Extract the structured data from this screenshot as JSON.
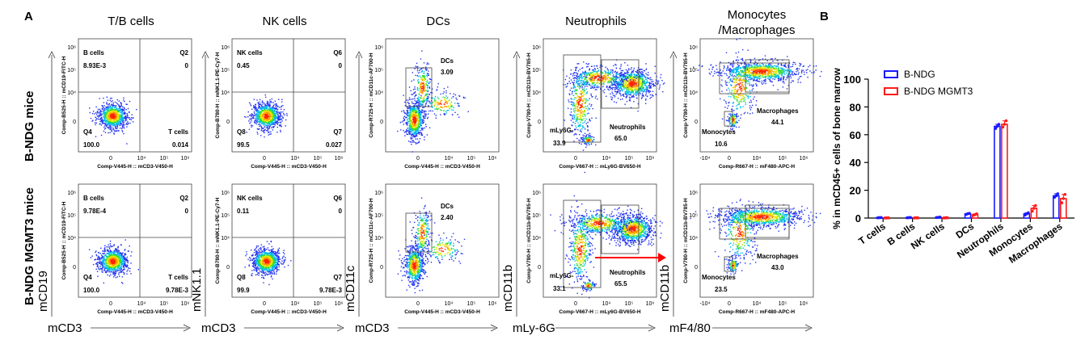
{
  "figure": {
    "panel_a_letter": "A",
    "panel_b_letter": "B",
    "row_labels": [
      "B-NDG mice",
      "B-NDG MGMT3 mice"
    ],
    "columns": [
      {
        "title": "T/B cells",
        "big_y_label": "mCD19",
        "big_x_label": "mCD3",
        "x_axis_label": "Comp-V445-H :: mCD3-V450-H",
        "y_axis_label": "Comp-B525-H :: mCD19-FITC-H",
        "x_ticks": [
          "0",
          "10⁴",
          "10⁵",
          "10⁶"
        ],
        "y_ticks": [
          "10⁶",
          "10⁵",
          "10⁴",
          "0"
        ],
        "gate": "quadrant",
        "rows": [
          {
            "labels": [
              {
                "t": "B cells",
                "a": "tl"
              },
              {
                "t": "8.93E-3",
                "a": "tl2"
              },
              {
                "t": "Q2",
                "a": "tr"
              },
              {
                "t": "0",
                "a": "tr2"
              },
              {
                "t": "Q4",
                "a": "bl"
              },
              {
                "t": "100.0",
                "a": "bl2"
              },
              {
                "t": "T cells",
                "a": "br"
              },
              {
                "t": "0.014",
                "a": "br2"
              }
            ]
          },
          {
            "labels": [
              {
                "t": "B cells",
                "a": "tl"
              },
              {
                "t": "9.78E-4",
                "a": "tl2"
              },
              {
                "t": "Q2",
                "a": "tr"
              },
              {
                "t": "0",
                "a": "tr2"
              },
              {
                "t": "Q4",
                "a": "bl"
              },
              {
                "t": "100.0",
                "a": "bl2"
              },
              {
                "t": "T cells",
                "a": "br"
              },
              {
                "t": "9.78E-3",
                "a": "br2"
              }
            ]
          }
        ]
      },
      {
        "title": "NK cells",
        "big_y_label": "mNK1.1",
        "big_x_label": "mCD3",
        "x_axis_label": "Comp-V445-H :: mCD3-V450-H",
        "y_axis_label": "Comp-B780-H :: mNK1.1-PE-Cy7-H",
        "x_ticks": [
          "0",
          "10⁴",
          "10⁵",
          "10⁶"
        ],
        "y_ticks": [
          "10⁶",
          "10⁵",
          "10⁴",
          "0"
        ],
        "gate": "quadrant",
        "rows": [
          {
            "labels": [
              {
                "t": "NK cells",
                "a": "tl"
              },
              {
                "t": "0.45",
                "a": "tl2"
              },
              {
                "t": "Q6",
                "a": "tr"
              },
              {
                "t": "0",
                "a": "tr2"
              },
              {
                "t": "Q8",
                "a": "bl"
              },
              {
                "t": "99.5",
                "a": "bl2"
              },
              {
                "t": "Q7",
                "a": "br"
              },
              {
                "t": "0.027",
                "a": "br2"
              }
            ]
          },
          {
            "labels": [
              {
                "t": "NK cells",
                "a": "tl"
              },
              {
                "t": "0.11",
                "a": "tl2"
              },
              {
                "t": "Q6",
                "a": "tr"
              },
              {
                "t": "0",
                "a": "tr2"
              },
              {
                "t": "Q8",
                "a": "bl"
              },
              {
                "t": "99.9",
                "a": "bl2"
              },
              {
                "t": "Q7",
                "a": "br"
              },
              {
                "t": "9.78E-3",
                "a": "br2"
              }
            ]
          }
        ]
      },
      {
        "title": "DCs",
        "big_y_label": "mCD11c",
        "big_x_label": "mCD3",
        "x_axis_label": "Comp-V445-H :: mCD3-V450-H",
        "y_axis_label": "Comp-R725-H :: mCD11c-AF700-H",
        "x_ticks": [
          "0",
          "10⁴",
          "10⁵",
          "10⁶"
        ],
        "y_ticks": [
          "10⁶",
          "10⁵",
          "10⁴",
          "0"
        ],
        "gate": "box",
        "rows": [
          {
            "labels": [
              {
                "t": "DCs",
                "a": "gate1"
              },
              {
                "t": "3.09",
                "a": "gate1v"
              }
            ]
          },
          {
            "labels": [
              {
                "t": "DCs",
                "a": "gate1"
              },
              {
                "t": "2.40",
                "a": "gate1v"
              }
            ]
          }
        ]
      },
      {
        "title": "Neutrophils",
        "big_y_label": "mCD11b",
        "big_x_label": "mLy-6G",
        "x_axis_label": "Comp-V667-H :: mLy6G-BV650-H",
        "y_axis_label": "Comp-V780-H :: mCD11b-BV785-H",
        "x_ticks": [
          "0",
          "10⁴",
          "10⁵",
          "10⁶"
        ],
        "y_ticks": [
          "10⁶",
          "10⁵",
          "10⁴",
          "0"
        ],
        "gate": "twobox",
        "rows": [
          {
            "labels": [
              {
                "t": "mLy6G-",
                "a": "lg"
              },
              {
                "t": "33.9",
                "a": "lgv"
              },
              {
                "t": "Neutrophils",
                "a": "rg"
              },
              {
                "t": "65.0",
                "a": "rgv"
              }
            ]
          },
          {
            "labels": [
              {
                "t": "mLy6G-",
                "a": "lg"
              },
              {
                "t": "33.1",
                "a": "lgv"
              },
              {
                "t": "Neutrophils",
                "a": "rg"
              },
              {
                "t": "65.5",
                "a": "rgv"
              }
            ]
          }
        ]
      },
      {
        "title": "Monocytes\n/Macrophages",
        "big_y_label": "mCD11b",
        "big_x_label": "mF4/80",
        "x_axis_label": "Comp-R667-H :: mF480-APC-H",
        "y_axis_label": "Comp-V780-H :: mCD11b-BV785-H",
        "x_ticks": [
          "-10⁴",
          "0",
          "10⁴",
          "10⁵",
          "10⁶"
        ],
        "y_ticks": [
          "10⁶",
          "10⁵",
          "10⁴",
          "0"
        ],
        "gate": "mono",
        "rows": [
          {
            "labels": [
              {
                "t": "Macrophages",
                "a": "mac"
              },
              {
                "t": "44.1",
                "a": "macv"
              },
              {
                "t": "Monocytes",
                "a": "mon"
              },
              {
                "t": "10.6",
                "a": "monv"
              }
            ]
          },
          {
            "labels": [
              {
                "t": "Macrophages",
                "a": "mac"
              },
              {
                "t": "43.0",
                "a": "macv"
              },
              {
                "t": "Monocytes",
                "a": "mon"
              },
              {
                "t": "23.5",
                "a": "monv"
              }
            ]
          }
        ]
      }
    ],
    "colors": {
      "blue_series": "#1a1aff",
      "red_series": "#ff1a1a",
      "red_arrow": "#ff0000"
    }
  },
  "chart_data": {
    "type": "bar",
    "categories": [
      "T cells",
      "B cells",
      "NK cells",
      "DCs",
      "Neutrophils",
      "Monocytes",
      "Macrophages"
    ],
    "series": [
      {
        "name": "B-NDG",
        "values": [
          0.3,
          0.3,
          0.5,
          3.0,
          66.0,
          3.0,
          16.0
        ],
        "points": [
          [
            0.2,
            0.3,
            0.4
          ],
          [
            0.2,
            0.3,
            0.4
          ],
          [
            0.4,
            0.5,
            0.7
          ],
          [
            2.6,
            3.1,
            3.4
          ],
          [
            64.5,
            66.0,
            67.5
          ],
          [
            2.2,
            3.0,
            3.8
          ],
          [
            15.0,
            16.0,
            17.5
          ]
        ]
      },
      {
        "name": "B-NDG MGMT3",
        "values": [
          0.1,
          0.2,
          0.2,
          2.5,
          67.5,
          7.0,
          14.0
        ],
        "points": [
          [
            0.1,
            0.1,
            0.2
          ],
          [
            0.1,
            0.2,
            0.2
          ],
          [
            0.1,
            0.2,
            0.3
          ],
          [
            2.0,
            2.5,
            3.0
          ],
          [
            65.5,
            67.5,
            70.0
          ],
          [
            5.0,
            7.0,
            9.0
          ],
          [
            11.0,
            14.0,
            17.0
          ]
        ]
      }
    ],
    "title": "",
    "xlabel": "",
    "ylabel": "% in mCD45+ cells of bone marrow",
    "ylim": [
      0,
      100
    ],
    "yticks": [
      "0",
      "20",
      "40",
      "60",
      "80",
      "100"
    ],
    "legend": "top-left"
  }
}
